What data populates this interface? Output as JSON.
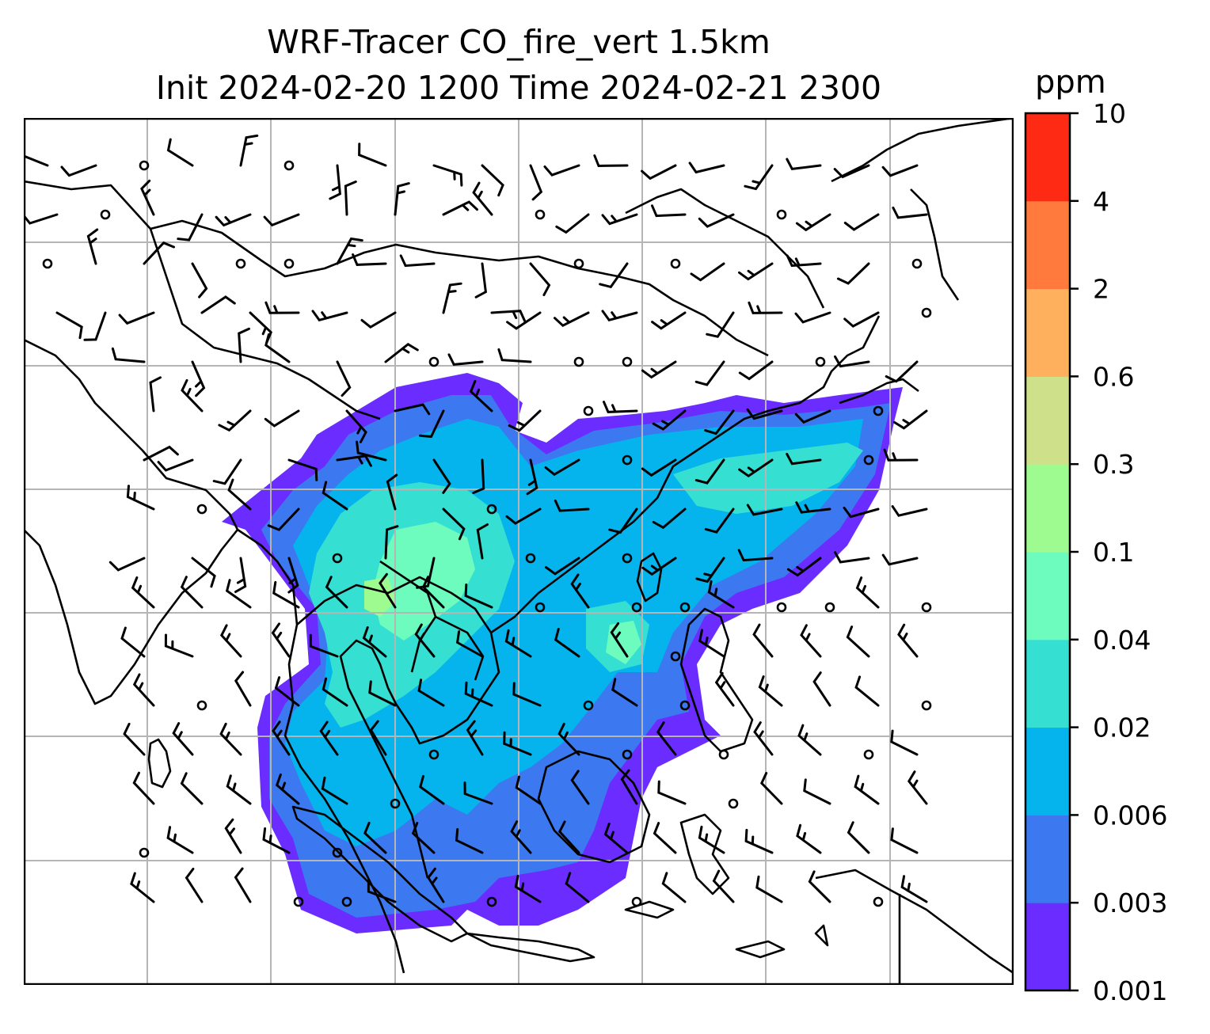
{
  "title": {
    "line1": "WRF-Tracer CO_fire_vert 1.5km",
    "line2": "Init 2024-02-20 1200 Time 2024-02-21 2300"
  },
  "colorbar": {
    "unit": "ppm",
    "levels": [
      "0.001",
      "0.003",
      "0.006",
      "0.02",
      "0.04",
      "0.1",
      "0.3",
      "0.6",
      "2",
      "4",
      "10"
    ],
    "colors": [
      "#6a2cff",
      "#3c78f0",
      "#05b4ec",
      "#35e0d2",
      "#6dfcbe",
      "#9efb8f",
      "#cfe08a",
      "#ffb05c",
      "#ff7a3c",
      "#ff2a14"
    ]
  },
  "map": {
    "gridlines": true,
    "features": [
      "coastlines",
      "country-borders",
      "wind-barbs",
      "calm-circles",
      "co-plume"
    ]
  }
}
